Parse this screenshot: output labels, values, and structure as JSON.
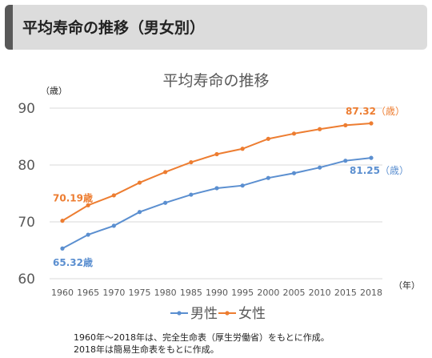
{
  "header": {
    "title": "平均寿命の推移（男女別）"
  },
  "colors": {
    "male": "#5b8fd0",
    "female": "#ed7d31",
    "axis_text": "#595959",
    "grid": "#d9d9d9"
  },
  "chart_data": {
    "type": "line",
    "title": "平均寿命の推移",
    "ylabel_unit": "（歳）",
    "xlabel_unit": "（年）",
    "categories": [
      "1960",
      "1965",
      "1970",
      "1975",
      "1980",
      "1985",
      "1990",
      "1995",
      "2000",
      "2005",
      "2010",
      "2015",
      "2018"
    ],
    "yticks": [
      "60",
      "70",
      "80",
      "90"
    ],
    "ylim": [
      60,
      90
    ],
    "grid": true,
    "legend": "bottom",
    "series": [
      {
        "name": "男性",
        "color": "#5b8fd0",
        "values": [
          65.32,
          67.74,
          69.31,
          71.73,
          73.35,
          74.78,
          75.92,
          76.38,
          77.72,
          78.56,
          79.55,
          80.75,
          81.25
        ]
      },
      {
        "name": "女性",
        "color": "#ed7d31",
        "values": [
          70.19,
          72.92,
          74.66,
          76.89,
          78.76,
          80.48,
          81.9,
          82.85,
          84.6,
          85.52,
          86.3,
          86.99,
          87.32
        ]
      }
    ],
    "annotations": {
      "male_start": "65.32歳",
      "female_start": "70.19歳",
      "male_end_value": "81.25",
      "male_end_unit": "（歳）",
      "female_end_value": "87.32",
      "female_end_unit": "（歳）"
    }
  },
  "notes": {
    "line1": "1960年～2018年は、完全生命表（厚生労働省）をもとに作成。",
    "line2": "2018年は簡易生命表をもとに作成。"
  }
}
